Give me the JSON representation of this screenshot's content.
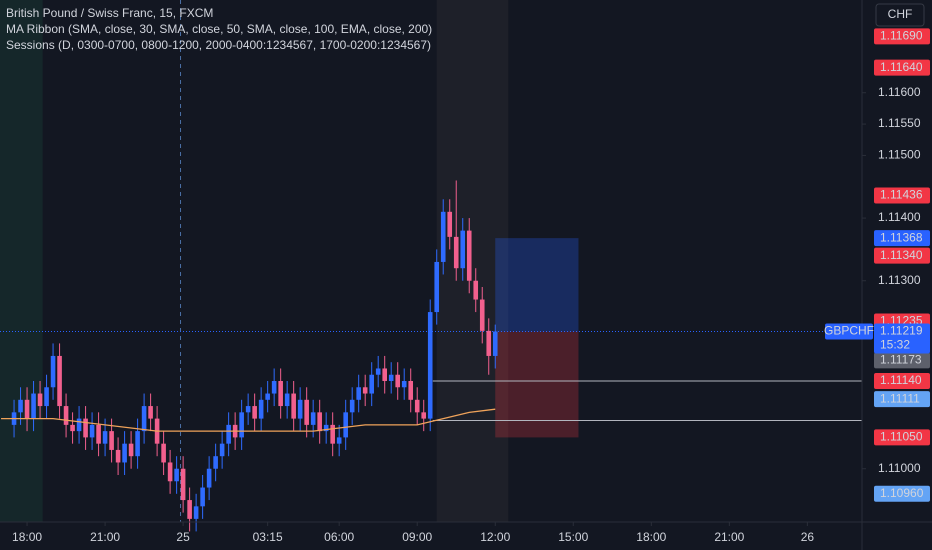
{
  "header": {
    "symbol": "British Pound / Swiss Franc, 15, FXCM",
    "indicators": [
      "MA Ribbon (SMA, close, 30, SMA, close, 50, SMA, close, 100, EMA, close, 200)",
      "Sessions (D, 0300-0700, 0800-1200, 2000-0400:1234567, 1700-0200:1234567)"
    ]
  },
  "currency": "CHF",
  "chart_data": {
    "type": "candlestick",
    "x": [
      -0.5,
      -0.25,
      0,
      0.25,
      0.5,
      0.75,
      1,
      1.25,
      1.5,
      1.75,
      2,
      2.25,
      2.5,
      2.75,
      3,
      3.25,
      3.5,
      3.75,
      4,
      4.25,
      4.5,
      4.75,
      5,
      5.25,
      5.5,
      5.75,
      6,
      6.25,
      6.5,
      6.75,
      7,
      7.25,
      7.5,
      7.75,
      8,
      8.25,
      8.5,
      8.75,
      9,
      9.25,
      9.5,
      9.75,
      10,
      10.25,
      10.5,
      10.75,
      11,
      11.25,
      11.5,
      11.75,
      12,
      12.25,
      12.5,
      12.75,
      13,
      13.25,
      13.5,
      13.75,
      14,
      14.25,
      14.5,
      14.75,
      15,
      15.25,
      15.5,
      15.75,
      16,
      16.25,
      16.5,
      16.75,
      17,
      17.25,
      17.5,
      17.75,
      18
    ],
    "open": [
      1.1107,
      1.1109,
      1.1111,
      1.1108,
      1.1112,
      1.111,
      1.1113,
      1.1118,
      1.111,
      1.1107,
      1.1106,
      1.1108,
      1.1105,
      1.1107,
      1.1104,
      1.1106,
      1.1103,
      1.1101,
      1.1104,
      1.1102,
      1.1106,
      1.111,
      1.1108,
      1.1104,
      1.1101,
      1.1098,
      1.11,
      1.1095,
      1.1092,
      1.1094,
      1.1097,
      1.11,
      1.1102,
      1.1104,
      1.1107,
      1.1105,
      1.1109,
      1.111,
      1.1108,
      1.1111,
      1.1112,
      1.1114,
      1.111,
      1.1112,
      1.1108,
      1.1111,
      1.1107,
      1.1109,
      1.1106,
      1.1107,
      1.1104,
      1.1105,
      1.1109,
      1.1111,
      1.1113,
      1.1112,
      1.1115,
      1.1116,
      1.1114,
      1.1115,
      1.1113,
      1.1114,
      1.1111,
      1.1109,
      1.1108,
      1.1125,
      1.1133,
      1.1141,
      1.1137,
      1.1132,
      1.1138,
      1.113,
      1.1127,
      1.1122,
      1.1118
    ],
    "high": [
      1.1111,
      1.1113,
      1.1113,
      1.1114,
      1.1114,
      1.1115,
      1.112,
      1.112,
      1.1112,
      1.1109,
      1.111,
      1.111,
      1.1109,
      1.1109,
      1.1108,
      1.1108,
      1.1105,
      1.1106,
      1.1106,
      1.1108,
      1.1112,
      1.1112,
      1.111,
      1.1106,
      1.1103,
      1.1102,
      1.1102,
      1.1097,
      1.1096,
      1.1099,
      1.1102,
      1.1104,
      1.1106,
      1.1109,
      1.1109,
      1.1111,
      1.1112,
      1.1112,
      1.1113,
      1.1114,
      1.1116,
      1.1116,
      1.1114,
      1.1114,
      1.1113,
      1.1113,
      1.1111,
      1.1111,
      1.1109,
      1.1109,
      1.1107,
      1.1111,
      1.1113,
      1.1115,
      1.1115,
      1.1117,
      1.1118,
      1.1118,
      1.1117,
      1.1117,
      1.1116,
      1.1116,
      1.1113,
      1.1111,
      1.1127,
      1.1135,
      1.1143,
      1.1143,
      1.1146,
      1.114,
      1.114,
      1.1132,
      1.1129,
      1.1124,
      1.1123
    ],
    "low": [
      1.1105,
      1.1107,
      1.1106,
      1.1106,
      1.1108,
      1.1108,
      1.1111,
      1.1108,
      1.1105,
      1.1104,
      1.1104,
      1.1103,
      1.1103,
      1.1102,
      1.1102,
      1.1101,
      1.1099,
      1.1099,
      1.11,
      1.11,
      1.1104,
      1.1106,
      1.1102,
      1.1099,
      1.1096,
      1.1096,
      1.1093,
      1.109,
      1.109,
      1.1092,
      1.1095,
      1.1098,
      1.11,
      1.1102,
      1.1103,
      1.1103,
      1.1107,
      1.1106,
      1.1106,
      1.1109,
      1.111,
      1.1108,
      1.1108,
      1.1106,
      1.1106,
      1.1105,
      1.1105,
      1.1104,
      1.1104,
      1.1102,
      1.1102,
      1.1103,
      1.1107,
      1.1109,
      1.111,
      1.111,
      1.1113,
      1.1112,
      1.1112,
      1.1111,
      1.1111,
      1.1109,
      1.1107,
      1.1106,
      1.1106,
      1.1123,
      1.1131,
      1.1135,
      1.113,
      1.113,
      1.1128,
      1.1125,
      1.112,
      1.1115,
      1.1116
    ],
    "close": [
      1.1109,
      1.1111,
      1.1108,
      1.1112,
      1.111,
      1.1113,
      1.1118,
      1.111,
      1.1107,
      1.1106,
      1.1108,
      1.1105,
      1.1107,
      1.1104,
      1.1106,
      1.1103,
      1.1101,
      1.1104,
      1.1102,
      1.1106,
      1.111,
      1.1108,
      1.1104,
      1.1101,
      1.1098,
      1.11,
      1.1095,
      1.1092,
      1.1094,
      1.1097,
      1.11,
      1.1102,
      1.1104,
      1.1107,
      1.1105,
      1.1109,
      1.111,
      1.1108,
      1.1111,
      1.1112,
      1.1114,
      1.111,
      1.1112,
      1.1108,
      1.1111,
      1.1107,
      1.1109,
      1.1106,
      1.1107,
      1.1104,
      1.1105,
      1.1109,
      1.1111,
      1.1113,
      1.1112,
      1.1115,
      1.1116,
      1.1114,
      1.1115,
      1.1113,
      1.1114,
      1.1111,
      1.1109,
      1.1108,
      1.1125,
      1.1133,
      1.1141,
      1.1137,
      1.1132,
      1.1138,
      1.113,
      1.1127,
      1.1122,
      1.1118,
      1.11219
    ],
    "up_color": "#2f6bff",
    "down_color": "#f2608e",
    "ma": {
      "x": [
        -1,
        1,
        3,
        5,
        7,
        9,
        11,
        13,
        15,
        16,
        17,
        18
      ],
      "values": [
        1.1108,
        1.1108,
        1.1107,
        1.1106,
        1.1106,
        1.1106,
        1.1106,
        1.1107,
        1.1107,
        1.1108,
        1.1109,
        1.11095
      ],
      "color": "#f0a35a"
    },
    "xlim": [
      -1.04,
      32.1
    ],
    "ylim": [
      1.10915,
      1.11748
    ],
    "xticks": [
      {
        "value": 0,
        "label": "18:00"
      },
      {
        "value": 3,
        "label": "21:00"
      },
      {
        "value": 6,
        "label": "25"
      },
      {
        "value": 9.25,
        "label": "03:15"
      },
      {
        "value": 12,
        "label": "06:00"
      },
      {
        "value": 15,
        "label": "09:00"
      },
      {
        "value": 18,
        "label": "12:00"
      },
      {
        "value": 21,
        "label": "15:00"
      },
      {
        "value": 24,
        "label": "18:00"
      },
      {
        "value": 27,
        "label": "21:00"
      },
      {
        "value": 30,
        "label": "26"
      }
    ],
    "yticks": [
      {
        "value": 1.116,
        "label": "1.11600"
      },
      {
        "value": 1.1155,
        "label": "1.11550"
      },
      {
        "value": 1.115,
        "label": "1.11500"
      },
      {
        "value": 1.114,
        "label": "1.11400"
      },
      {
        "value": 1.113,
        "label": "1.11300"
      },
      {
        "value": 1.11,
        "label": "1.11000"
      }
    ],
    "price_labels": [
      {
        "value": 1.1169,
        "label": "1.11690",
        "color": "#f23645"
      },
      {
        "value": 1.1164,
        "label": "1.11640",
        "color": "#f23645"
      },
      {
        "value": 1.11436,
        "label": "1.11436",
        "color": "#f23645"
      },
      {
        "value": 1.11368,
        "label": "1.11368",
        "color": "#2962ff"
      },
      {
        "value": 1.1134,
        "label": "1.11340",
        "color": "#f23645"
      },
      {
        "value": 1.11235,
        "label": "1.11235",
        "color": "#f23645"
      },
      {
        "value": 1.11173,
        "label": "1.11173",
        "color": "#5d606b"
      },
      {
        "value": 1.1114,
        "label": "1.11140",
        "color": "#f23645"
      },
      {
        "value": 1.11111,
        "label": "1.11111",
        "color": "#64a4f5"
      },
      {
        "value": 1.1105,
        "label": "1.11050",
        "color": "#f23645"
      },
      {
        "value": 1.1096,
        "label": "1.10960",
        "color": "#64a4f5"
      }
    ],
    "symbol_label": "GBPCHF",
    "current_label": "1.11219",
    "countdown": "15:32",
    "current_price": 1.11219,
    "levels": [
      1.1114,
      1.11077
    ],
    "position": {
      "start": 18,
      "end": 21.2,
      "target": 1.11368,
      "stop": 1.1105
    },
    "session": [
      15.75,
      18.5
    ],
    "first_session": [
      -1.04,
      0.6
    ],
    "divider": 5.9
  }
}
